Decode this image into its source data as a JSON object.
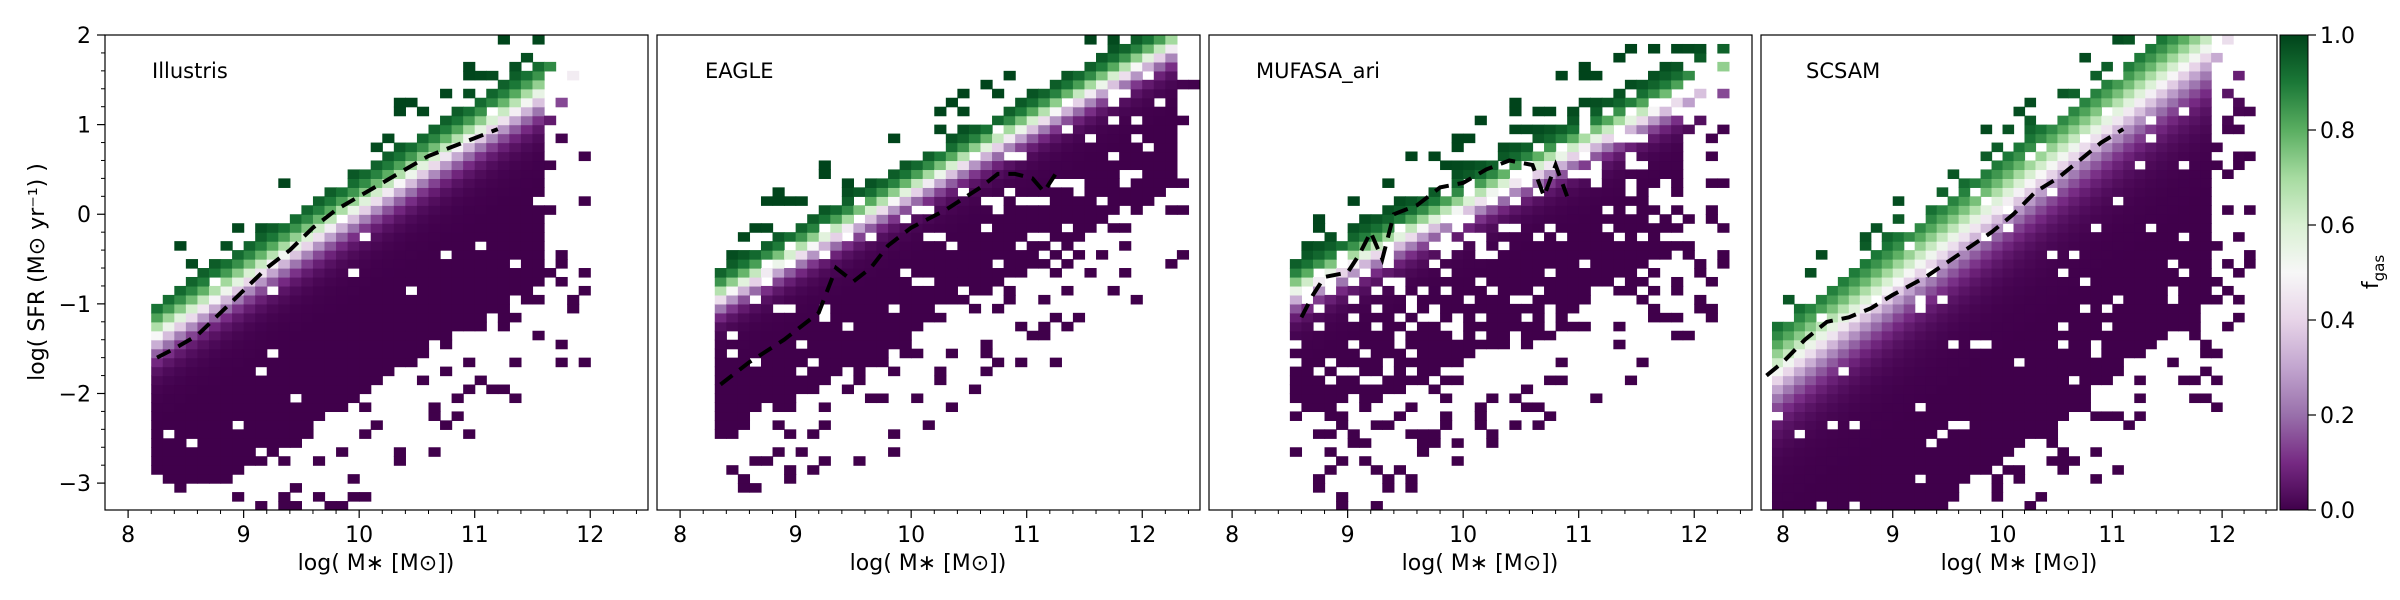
{
  "chart_data": [
    {
      "type": "heatmap",
      "title": "Illustris",
      "xlabel": "log( M∗ [M⊙])",
      "ylabel": "log( SFR (M⊙ yr⁻¹) )",
      "xlim": [
        7.8,
        12.5
      ],
      "ylim": [
        -3.3,
        2.0
      ],
      "xticks": [
        "8",
        "9",
        "10",
        "11",
        "12"
      ],
      "yticks": [
        "−3",
        "−2",
        "−1",
        "0",
        "1",
        "2"
      ],
      "valley": {
        "x1": 8.25,
        "y1": -1.35,
        "x2": 12.2,
        "y2": 1.85,
        "width": 0.42
      },
      "density": {
        "lowx": 8.2,
        "highx": 11.6,
        "band_up": 0.4,
        "band_down": 2.1,
        "fill_low_y": -3.0,
        "base": 0.96,
        "scatter": 0.35
      },
      "median_line": [
        [
          8.25,
          -1.6
        ],
        [
          8.4,
          -1.5
        ],
        [
          8.6,
          -1.35
        ],
        [
          8.8,
          -1.1
        ],
        [
          9.0,
          -0.85
        ],
        [
          9.2,
          -0.6
        ],
        [
          9.4,
          -0.4
        ],
        [
          9.6,
          -0.15
        ],
        [
          9.8,
          0.05
        ],
        [
          10.0,
          0.2
        ],
        [
          10.2,
          0.35
        ],
        [
          10.4,
          0.5
        ],
        [
          10.6,
          0.65
        ],
        [
          10.8,
          0.75
        ],
        [
          11.0,
          0.85
        ],
        [
          11.2,
          0.95
        ]
      ]
    },
    {
      "type": "heatmap",
      "title": "EAGLE",
      "xlabel": "log( M∗ [M⊙])",
      "xlim": [
        7.8,
        12.5
      ],
      "ylim": [
        -3.3,
        2.0
      ],
      "xticks": [
        "8",
        "9",
        "10",
        "11",
        "12"
      ],
      "valley": {
        "x1": 8.1,
        "y1": -1.1,
        "x2": 12.3,
        "y2": 1.9,
        "width": 0.32
      },
      "density": {
        "lowx": 8.3,
        "highx": 12.3,
        "band_up": 0.35,
        "band_down": 1.6,
        "fill_low_y": -2.8,
        "base": 0.9,
        "scatter": 0.3
      },
      "median_line": [
        [
          8.35,
          -1.9
        ],
        [
          8.6,
          -1.65
        ],
        [
          8.9,
          -1.4
        ],
        [
          9.2,
          -1.1
        ],
        [
          9.35,
          -0.6
        ],
        [
          9.5,
          -0.75
        ],
        [
          9.65,
          -0.6
        ],
        [
          9.8,
          -0.35
        ],
        [
          10.0,
          -0.15
        ],
        [
          10.3,
          0.05
        ],
        [
          10.6,
          0.3
        ],
        [
          10.75,
          0.45
        ],
        [
          10.9,
          0.45
        ],
        [
          11.05,
          0.4
        ],
        [
          11.15,
          0.25
        ],
        [
          11.25,
          0.45
        ]
      ]
    },
    {
      "type": "heatmap",
      "title": "MUFASA_ari",
      "xlabel": "log( M∗ [M⊙])",
      "xlim": [
        7.8,
        12.5
      ],
      "ylim": [
        -3.3,
        2.0
      ],
      "xticks": [
        "8",
        "9",
        "10",
        "11",
        "12"
      ],
      "valley": {
        "x1": 8.5,
        "y1": -0.9,
        "x2": 11.8,
        "y2": 1.25,
        "width": 0.35
      },
      "density": {
        "lowx": 8.5,
        "highx": 11.9,
        "band_up": 0.45,
        "band_down": 1.7,
        "fill_low_y": -2.3,
        "base": 0.8,
        "scatter": 0.45
      },
      "median_line": [
        [
          8.6,
          -1.15
        ],
        [
          8.7,
          -0.9
        ],
        [
          8.8,
          -0.7
        ],
        [
          9.0,
          -0.65
        ],
        [
          9.1,
          -0.45
        ],
        [
          9.2,
          -0.2
        ],
        [
          9.3,
          -0.5
        ],
        [
          9.4,
          0.0
        ],
        [
          9.6,
          0.1
        ],
        [
          9.8,
          0.3
        ],
        [
          10.0,
          0.35
        ],
        [
          10.2,
          0.5
        ],
        [
          10.4,
          0.6
        ],
        [
          10.6,
          0.55
        ],
        [
          10.7,
          0.2
        ],
        [
          10.8,
          0.55
        ],
        [
          10.9,
          0.2
        ]
      ]
    },
    {
      "type": "heatmap",
      "title": "SCSAM",
      "xlabel": "log( M∗ [M⊙])",
      "xlim": [
        7.8,
        12.5
      ],
      "ylim": [
        -3.3,
        2.0
      ],
      "xticks": [
        "8",
        "9",
        "10",
        "11",
        "12"
      ],
      "valley": {
        "x1": 7.8,
        "y1": -1.9,
        "x2": 11.6,
        "y2": 1.6,
        "width": 0.55
      },
      "density": {
        "lowx": 7.9,
        "highx": 11.9,
        "band_up": 0.5,
        "band_down": 2.9,
        "fill_low_y": -3.3,
        "base": 0.95,
        "scatter": 0.4
      },
      "median_line": [
        [
          7.85,
          -1.8
        ],
        [
          8.0,
          -1.65
        ],
        [
          8.2,
          -1.4
        ],
        [
          8.4,
          -1.2
        ],
        [
          8.6,
          -1.15
        ],
        [
          8.8,
          -1.05
        ],
        [
          9.0,
          -0.9
        ],
        [
          9.3,
          -0.7
        ],
        [
          9.6,
          -0.45
        ],
        [
          9.9,
          -0.2
        ],
        [
          10.1,
          0.0
        ],
        [
          10.3,
          0.25
        ],
        [
          10.5,
          0.4
        ],
        [
          10.7,
          0.6
        ],
        [
          10.9,
          0.8
        ],
        [
          11.1,
          0.95
        ]
      ]
    }
  ],
  "colorbar": {
    "label": "f_gas",
    "label_main": "f",
    "label_sub": "gas",
    "min": 0.0,
    "max": 1.0,
    "ticks": [
      "0.0",
      "0.2",
      "0.4",
      "0.6",
      "0.8",
      "1.0"
    ],
    "colormap": "PRGn",
    "colors": [
      "#40004b",
      "#762a83",
      "#9970ab",
      "#c2a5cf",
      "#e7d4e8",
      "#f7f7f7",
      "#d9f0d3",
      "#a6dba0",
      "#5aae61",
      "#1b7837",
      "#00441b"
    ]
  }
}
